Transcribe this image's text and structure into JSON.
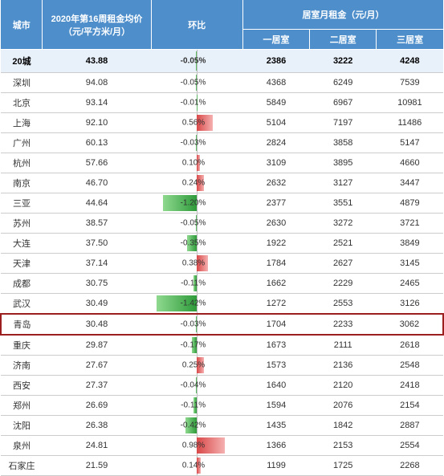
{
  "header": {
    "city": "城市",
    "avgPrice": "2020年第16周租金均价（元/平方米/月）",
    "change": "环比",
    "roomGroup": "居室月租金（元/月）",
    "room1": "一居室",
    "room2": "二居室",
    "room3": "三居室"
  },
  "summary": {
    "city": "20城",
    "price": "43.88",
    "changeText": "-0.05%",
    "changeVal": -0.05,
    "r1": "2386",
    "r2": "3222",
    "r3": "4248"
  },
  "rows": [
    {
      "city": "深圳",
      "price": "94.08",
      "changeText": "-0.05%",
      "changeVal": -0.05,
      "r1": "4368",
      "r2": "6249",
      "r3": "7539",
      "highlight": false
    },
    {
      "city": "北京",
      "price": "93.14",
      "changeText": "-0.01%",
      "changeVal": -0.01,
      "r1": "5849",
      "r2": "6967",
      "r3": "10981",
      "highlight": false
    },
    {
      "city": "上海",
      "price": "92.10",
      "changeText": "0.56%",
      "changeVal": 0.56,
      "r1": "5104",
      "r2": "7197",
      "r3": "11486",
      "highlight": false
    },
    {
      "city": "广州",
      "price": "60.13",
      "changeText": "-0.03%",
      "changeVal": -0.03,
      "r1": "2824",
      "r2": "3858",
      "r3": "5147",
      "highlight": false
    },
    {
      "city": "杭州",
      "price": "57.66",
      "changeText": "0.10%",
      "changeVal": 0.1,
      "r1": "3109",
      "r2": "3895",
      "r3": "4660",
      "highlight": false
    },
    {
      "city": "南京",
      "price": "46.70",
      "changeText": "0.24%",
      "changeVal": 0.24,
      "r1": "2632",
      "r2": "3127",
      "r3": "3447",
      "highlight": false
    },
    {
      "city": "三亚",
      "price": "44.64",
      "changeText": "-1.20%",
      "changeVal": -1.2,
      "r1": "2377",
      "r2": "3551",
      "r3": "4879",
      "highlight": false
    },
    {
      "city": "苏州",
      "price": "38.57",
      "changeText": "-0.05%",
      "changeVal": -0.05,
      "r1": "2630",
      "r2": "3272",
      "r3": "3721",
      "highlight": false
    },
    {
      "city": "大连",
      "price": "37.50",
      "changeText": "-0.35%",
      "changeVal": -0.35,
      "r1": "1922",
      "r2": "2521",
      "r3": "3849",
      "highlight": false
    },
    {
      "city": "天津",
      "price": "37.14",
      "changeText": "0.38%",
      "changeVal": 0.38,
      "r1": "1784",
      "r2": "2627",
      "r3": "3145",
      "highlight": false
    },
    {
      "city": "成都",
      "price": "30.75",
      "changeText": "-0.11%",
      "changeVal": -0.11,
      "r1": "1662",
      "r2": "2229",
      "r3": "2465",
      "highlight": false
    },
    {
      "city": "武汉",
      "price": "30.49",
      "changeText": "-1.42%",
      "changeVal": -1.42,
      "r1": "1272",
      "r2": "2553",
      "r3": "3126",
      "highlight": false
    },
    {
      "city": "青岛",
      "price": "30.48",
      "changeText": "-0.03%",
      "changeVal": -0.03,
      "r1": "1704",
      "r2": "2233",
      "r3": "3062",
      "highlight": true
    },
    {
      "city": "重庆",
      "price": "29.87",
      "changeText": "-0.17%",
      "changeVal": -0.17,
      "r1": "1673",
      "r2": "2111",
      "r3": "2618",
      "highlight": false
    },
    {
      "city": "济南",
      "price": "27.67",
      "changeText": "0.25%",
      "changeVal": 0.25,
      "r1": "1573",
      "r2": "2136",
      "r3": "2548",
      "highlight": false
    },
    {
      "city": "西安",
      "price": "27.37",
      "changeText": "-0.04%",
      "changeVal": -0.04,
      "r1": "1640",
      "r2": "2120",
      "r3": "2418",
      "highlight": false
    },
    {
      "city": "郑州",
      "price": "26.69",
      "changeText": "-0.11%",
      "changeVal": -0.11,
      "r1": "1594",
      "r2": "2076",
      "r3": "2154",
      "highlight": false
    },
    {
      "city": "沈阳",
      "price": "26.38",
      "changeText": "-0.42%",
      "changeVal": -0.42,
      "r1": "1435",
      "r2": "1842",
      "r3": "2887",
      "highlight": false
    },
    {
      "city": "泉州",
      "price": "24.81",
      "changeText": "0.98%",
      "changeVal": 0.98,
      "r1": "1366",
      "r2": "2153",
      "r3": "2554",
      "highlight": false
    },
    {
      "city": "石家庄",
      "price": "21.59",
      "changeText": "0.14%",
      "changeVal": 0.14,
      "r1": "1199",
      "r2": "1725",
      "r3": "2268",
      "highlight": false
    }
  ],
  "style": {
    "maxAbsChange": 1.42,
    "barHalfWidthPx": 50,
    "headerBg": "#4e8ecb",
    "headerFg": "#ffffff",
    "summaryBg": "#e8f0fa",
    "posColor1": "#d94848",
    "posColor2": "#f5b0b0",
    "negColor1": "#2e9b3a",
    "negColor2": "#8fd98f",
    "highlightBorder": "#9c1f1f",
    "gridColor": "#cccccc",
    "fontSize": 11
  }
}
